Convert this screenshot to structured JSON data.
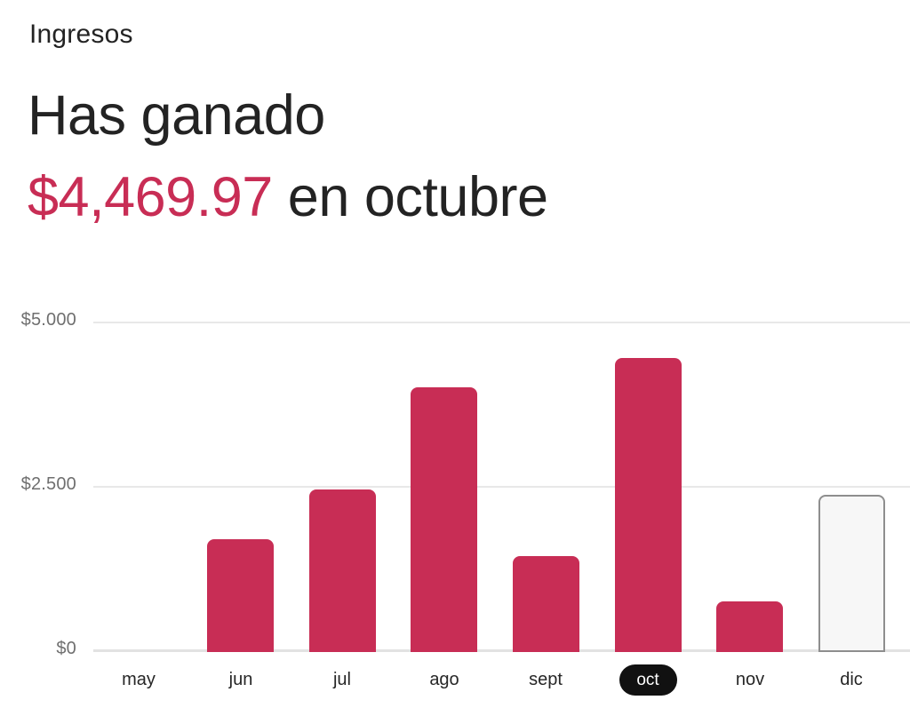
{
  "header": {
    "eyebrow": "Ingresos",
    "line1": "Has ganado",
    "amount": "$4,469.97",
    "line2_suffix": " en octubre"
  },
  "colors": {
    "accent": "#C82D55",
    "heading_text": "#232323",
    "axis_label_gray": "#6F6F6F",
    "month_label": "#262626",
    "gridline": "#E8E8E8",
    "baseline": "#E2E2E2",
    "selected_pill_bg": "#111111",
    "selected_pill_text": "#FFFFFF",
    "projected_fill": "#F7F7F7",
    "projected_border": "#8E8E8E"
  },
  "chart_data": {
    "type": "bar",
    "title": "Ingresos",
    "categories": [
      "may",
      "jun",
      "jul",
      "ago",
      "sept",
      "oct",
      "nov",
      "dic"
    ],
    "values": [
      0,
      1715,
      2475,
      4025,
      1460,
      4469.97,
      770,
      2390
    ],
    "selected_category": "oct",
    "projected_category": "dic",
    "y_ticks": [
      {
        "label": "$5.000",
        "value": 5000
      },
      {
        "label": "$2.500",
        "value": 2500
      },
      {
        "label": "$0",
        "value": 0
      }
    ],
    "ylim": [
      0,
      5000
    ],
    "xlabel": "",
    "ylabel": "",
    "legend": "none",
    "grid": "horizontal-only"
  }
}
